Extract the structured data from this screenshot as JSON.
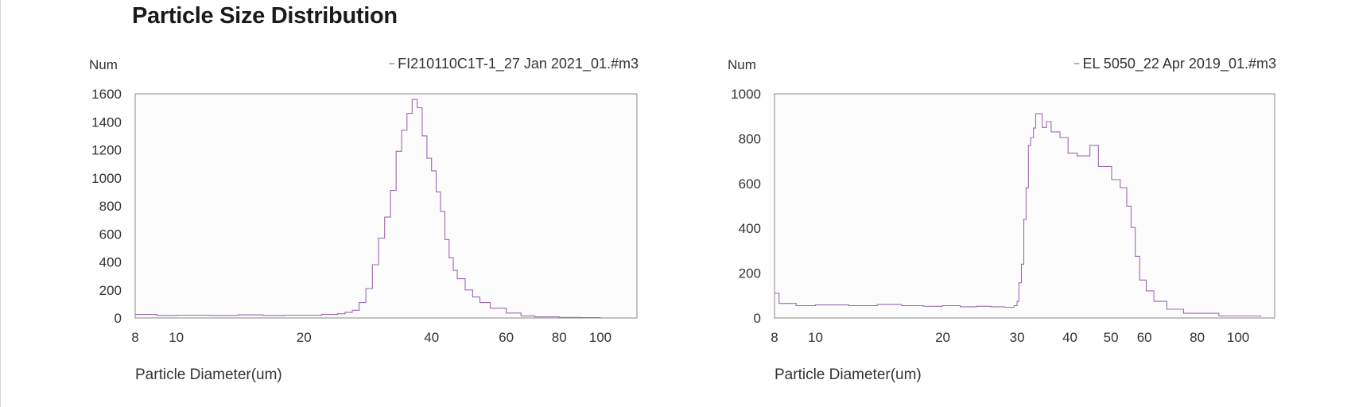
{
  "title": "Particle Size Distribution",
  "line_color": "#9a6aae",
  "chart_data": [
    {
      "type": "line",
      "step": true,
      "ylabel": "Num",
      "xlabel": "Particle Diameter(um)",
      "x_scale": "log",
      "xlim": [
        8,
        122
      ],
      "ylim": [
        0,
        1600
      ],
      "x_ticks": [
        8,
        10,
        20,
        40,
        60,
        80,
        100
      ],
      "y_ticks": [
        0,
        200,
        400,
        600,
        800,
        1000,
        1200,
        1400,
        1600
      ],
      "grid": false,
      "legend_position": "top-right",
      "series": [
        {
          "name": "FI210110C1T-1_27 Jan 2021_01.#m3",
          "x": [
            8,
            9,
            10,
            12,
            14,
            16,
            18,
            20,
            22,
            24,
            25,
            26,
            27,
            28,
            29,
            30,
            31,
            32,
            33,
            34,
            35,
            36,
            37,
            38,
            39,
            40,
            41,
            42,
            43,
            44,
            45,
            46,
            48,
            50,
            52,
            55,
            60,
            65,
            70,
            80,
            90,
            100
          ],
          "y": [
            25,
            18,
            20,
            18,
            22,
            18,
            20,
            20,
            25,
            30,
            40,
            55,
            110,
            210,
            380,
            570,
            720,
            910,
            1190,
            1340,
            1460,
            1560,
            1500,
            1300,
            1140,
            1050,
            900,
            760,
            560,
            430,
            340,
            280,
            200,
            150,
            110,
            70,
            35,
            15,
            8,
            4,
            2,
            1
          ]
        }
      ]
    },
    {
      "type": "line",
      "step": true,
      "ylabel": "Num",
      "xlabel": "Particle Diameter(um)",
      "x_scale": "log",
      "xlim": [
        8,
        122
      ],
      "ylim": [
        0,
        1000
      ],
      "x_ticks": [
        8,
        10,
        20,
        30,
        40,
        50,
        60,
        80,
        100
      ],
      "y_ticks": [
        0,
        200,
        400,
        600,
        800,
        1000
      ],
      "grid": false,
      "legend_position": "top-right",
      "series": [
        {
          "name": "EL 5050_22 Apr 2019_01.#m3",
          "x": [
            8,
            8.2,
            9,
            10,
            12,
            14,
            16,
            18,
            20,
            22,
            24,
            26,
            28,
            29.5,
            30,
            30.3,
            30.7,
            31.1,
            31.5,
            31.9,
            32.3,
            32.8,
            33.2,
            34.4,
            35.2,
            36.1,
            37.9,
            39.6,
            41.6,
            44.6,
            46.7,
            50.2,
            52.6,
            54.5,
            55.8,
            57.1,
            58.5,
            60.6,
            63.2,
            67.8,
            74.3,
            90,
            113
          ],
          "y": [
            110,
            65,
            55,
            58,
            55,
            60,
            55,
            52,
            55,
            50,
            52,
            50,
            48,
            55,
            74,
            157,
            240,
            440,
            580,
            770,
            805,
            847,
            911,
            850,
            876,
            830,
            805,
            735,
            723,
            770,
            676,
            617,
            581,
            499,
            404,
            275,
            169,
            121,
            74,
            39,
            21,
            9,
            5
          ]
        }
      ]
    }
  ]
}
